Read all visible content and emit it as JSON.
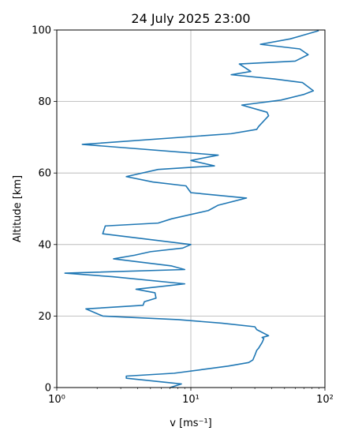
{
  "chart_data": {
    "type": "line",
    "title": "24 July 2025 23:00",
    "xlabel": "v   [ms⁻¹]",
    "ylabel": "Altitude [km]",
    "xscale": "log",
    "xlim": [
      1,
      100
    ],
    "ylim": [
      0,
      100
    ],
    "x_ticks": [
      1,
      10,
      100
    ],
    "x_tick_labels": [
      "10⁰",
      "10¹",
      "10²"
    ],
    "y_ticks": [
      0,
      20,
      40,
      60,
      80,
      100
    ],
    "y_tick_labels": [
      "0",
      "20",
      "40",
      "60",
      "80",
      "100"
    ],
    "grid": true,
    "series": [
      {
        "name": "",
        "color": "#1f77b4",
        "x": [
          7.0,
          8.5,
          3.3,
          3.3,
          7.5,
          12.0,
          19.0,
          27.0,
          29.0,
          30.0,
          31.0,
          32.0,
          34.0,
          35.0,
          34.0,
          38.0,
          31.0,
          30.0,
          17.0,
          8.0,
          2.2,
          1.65,
          4.4,
          4.5,
          5.5,
          5.4,
          3.9,
          6.5,
          9.0,
          2.6,
          1.15,
          9.0,
          7.2,
          2.65,
          3.8,
          5.0,
          8.7,
          10.0,
          2.2,
          2.3,
          5.7,
          7.2,
          13.5,
          16.0,
          26.0,
          10.0,
          9.2,
          5.2,
          3.3,
          5.7,
          15.0,
          10.0,
          16.0,
          1.55,
          20.0,
          31.0,
          32.0,
          38.0,
          37.0,
          24.0,
          47.0,
          70.0,
          82.0,
          68.0,
          42.0,
          20.0,
          28.0,
          23.0,
          60.0,
          75.0,
          65.0,
          33.0,
          55.0,
          90.0
        ],
        "y": [
          0.0,
          1.0,
          2.6,
          3.2,
          4.0,
          5.0,
          6.0,
          7.0,
          7.7,
          9.0,
          10.4,
          11.0,
          12.6,
          13.7,
          14.0,
          14.5,
          16.2,
          17.0,
          18.0,
          19.0,
          20.0,
          22.0,
          23.0,
          24.0,
          25.0,
          26.5,
          27.5,
          28.4,
          29.0,
          31.0,
          32.0,
          33.0,
          34.0,
          36.0,
          37.0,
          38.0,
          39.0,
          40.0,
          43.0,
          45.2,
          46.0,
          47.2,
          49.5,
          51.0,
          53.0,
          54.5,
          56.4,
          57.5,
          59.0,
          61.0,
          62.0,
          63.5,
          65.0,
          68.0,
          71.0,
          72.2,
          73.0,
          76.0,
          77.0,
          79.0,
          80.4,
          82.0,
          83.0,
          85.3,
          86.3,
          87.5,
          88.4,
          90.5,
          91.3,
          93.1,
          94.7,
          96.0,
          97.5,
          99.8
        ]
      }
    ]
  }
}
